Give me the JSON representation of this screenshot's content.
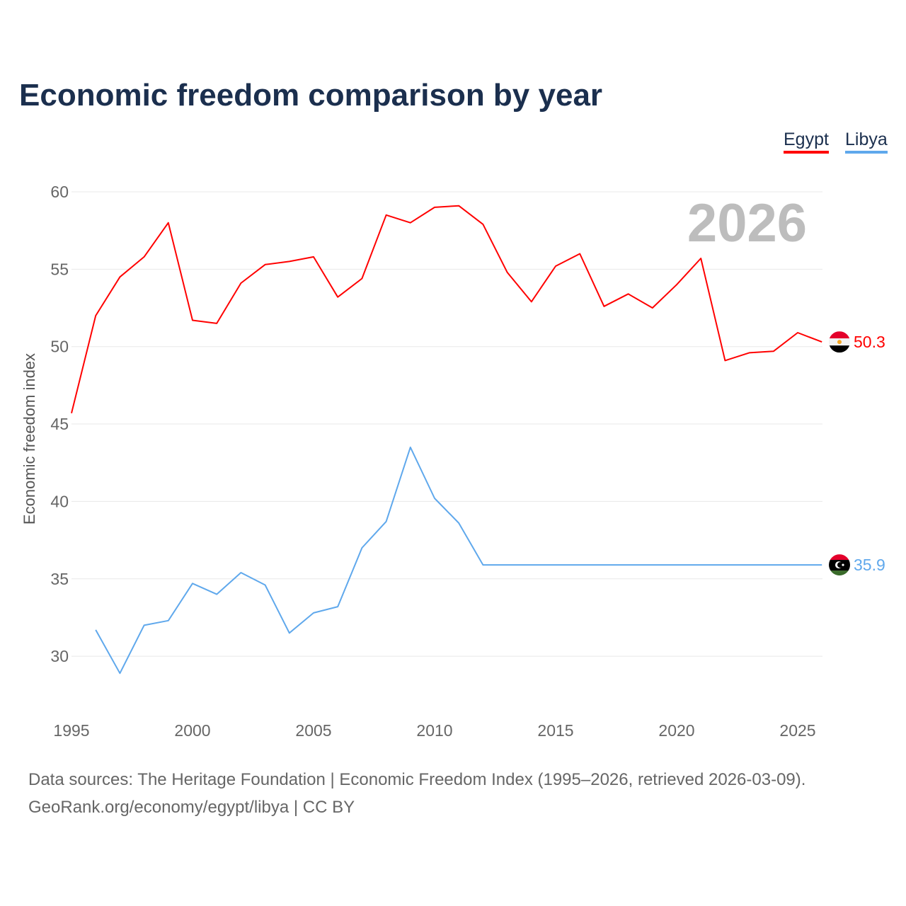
{
  "chart_data": {
    "type": "line",
    "title": "Economic freedom comparison by year",
    "xlabel": "",
    "ylabel": "Economic freedom index",
    "xlim": [
      1995,
      2026
    ],
    "ylim": [
      26,
      61
    ],
    "x_ticks": [
      "1995",
      "2000",
      "2005",
      "2010",
      "2015",
      "2020",
      "2025"
    ],
    "y_ticks": [
      "30",
      "35",
      "40",
      "45",
      "50",
      "55",
      "60"
    ],
    "grid": "horizontal",
    "legend_position": "top-right",
    "watermark_year": "2026",
    "series": [
      {
        "name": "Egypt",
        "color": "#ff0000",
        "end_label": "50.3",
        "flag": "egypt-flag",
        "x": [
          1995,
          1996,
          1997,
          1998,
          1999,
          2000,
          2001,
          2002,
          2003,
          2004,
          2005,
          2006,
          2007,
          2008,
          2009,
          2010,
          2011,
          2012,
          2013,
          2014,
          2015,
          2016,
          2017,
          2018,
          2019,
          2020,
          2021,
          2022,
          2023,
          2024,
          2025,
          2026
        ],
        "values": [
          45.7,
          52.0,
          54.5,
          55.8,
          58.0,
          51.7,
          51.5,
          54.1,
          55.3,
          55.5,
          55.8,
          53.2,
          54.4,
          58.5,
          58.0,
          59.0,
          59.1,
          57.9,
          54.8,
          52.9,
          55.2,
          56.0,
          52.6,
          53.4,
          52.5,
          54.0,
          55.7,
          49.1,
          49.6,
          49.7,
          50.9,
          50.3
        ]
      },
      {
        "name": "Libya",
        "color": "#5fa8ec",
        "end_label": "35.9",
        "flag": "libya-flag",
        "x": [
          1996,
          1997,
          1998,
          1999,
          2000,
          2001,
          2002,
          2003,
          2004,
          2005,
          2006,
          2007,
          2008,
          2009,
          2010,
          2011,
          2012,
          2013,
          2014,
          2015,
          2016,
          2017,
          2018,
          2019,
          2020,
          2021,
          2022,
          2023,
          2024,
          2025,
          2026
        ],
        "values": [
          31.7,
          28.9,
          32.0,
          32.3,
          34.7,
          34.0,
          35.4,
          34.6,
          31.5,
          32.8,
          33.2,
          37.0,
          38.7,
          43.5,
          40.2,
          38.6,
          35.9,
          35.9,
          35.9,
          35.9,
          35.9,
          35.9,
          35.9,
          35.9,
          35.9,
          35.9,
          35.9,
          35.9,
          35.9,
          35.9,
          35.9
        ]
      }
    ]
  },
  "footer": {
    "line1": "Data sources: The Heritage Foundation | Economic Freedom Index (1995–2026, retrieved 2026-03-09).",
    "line2": "GeoRank.org/economy/egypt/libya | CC BY"
  }
}
